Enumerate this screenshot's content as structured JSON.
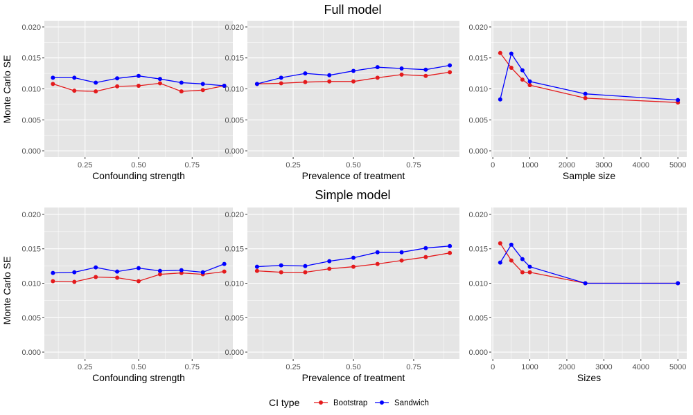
{
  "figure": {
    "row_titles": [
      "Full model",
      "Simple model"
    ],
    "y_axis_label": "Monte Carlo SE",
    "legend": {
      "title": "CI type",
      "entries": [
        {
          "name": "Bootstrap",
          "color": "#e41a1c"
        },
        {
          "name": "Sandwich",
          "color": "#0000ff"
        }
      ],
      "position": "bottom"
    },
    "panel_background": "#e5e5e5",
    "grid_color": "#ffffff"
  },
  "chart_data": [
    {
      "type": "line",
      "row": "Full model",
      "xlabel": "Confounding strength",
      "ylabel": "Monte Carlo SE",
      "xlim": [
        0.06,
        0.94
      ],
      "ylim": [
        -0.001,
        0.021
      ],
      "xticks": [
        0.25,
        0.5,
        0.75
      ],
      "xtick_labels": [
        "0.25",
        "0.50",
        "0.75"
      ],
      "yticks": [
        0,
        0.005,
        0.01,
        0.015,
        0.02
      ],
      "ytick_labels": [
        "0.000",
        "0.005",
        "0.010",
        "0.015",
        "0.020"
      ],
      "grid": true,
      "x": [
        0.1,
        0.2,
        0.3,
        0.4,
        0.5,
        0.6,
        0.7,
        0.8,
        0.9
      ],
      "series": [
        {
          "name": "Bootstrap",
          "values": [
            0.0108,
            0.0097,
            0.0096,
            0.0104,
            0.0105,
            0.0109,
            0.0096,
            0.0098,
            0.0105
          ]
        },
        {
          "name": "Sandwich",
          "values": [
            0.0118,
            0.0118,
            0.011,
            0.0117,
            0.0121,
            0.0116,
            0.011,
            0.0108,
            0.0105
          ]
        }
      ]
    },
    {
      "type": "line",
      "row": "Full model",
      "xlabel": "Prevalence of treatment",
      "ylabel": "",
      "xlim": [
        0.06,
        0.94
      ],
      "ylim": [
        -0.001,
        0.021
      ],
      "xticks": [
        0.25,
        0.5,
        0.75
      ],
      "xtick_labels": [
        "0.25",
        "0.50",
        "0.75"
      ],
      "yticks": [
        0,
        0.005,
        0.01,
        0.015,
        0.02
      ],
      "ytick_labels": [
        "0.000",
        "0.005",
        "0.010",
        "0.015",
        "0.020"
      ],
      "grid": true,
      "x": [
        0.1,
        0.2,
        0.3,
        0.4,
        0.5,
        0.6,
        0.7,
        0.8,
        0.9
      ],
      "series": [
        {
          "name": "Bootstrap",
          "values": [
            0.0108,
            0.0109,
            0.0111,
            0.0112,
            0.0112,
            0.0118,
            0.0123,
            0.0121,
            0.0127
          ]
        },
        {
          "name": "Sandwich",
          "values": [
            0.0108,
            0.0118,
            0.0125,
            0.0122,
            0.0129,
            0.0135,
            0.0133,
            0.0131,
            0.0138
          ]
        }
      ]
    },
    {
      "type": "line",
      "row": "Full model",
      "xlabel": "Sample size",
      "ylabel": "",
      "xlim": [
        -40,
        5240
      ],
      "ylim": [
        -0.001,
        0.021
      ],
      "xticks": [
        0,
        1000,
        2000,
        3000,
        4000,
        5000
      ],
      "xtick_labels": [
        "0",
        "1000",
        "2000",
        "3000",
        "4000",
        "5000"
      ],
      "yticks": [
        0,
        0.005,
        0.01,
        0.015,
        0.02
      ],
      "ytick_labels": [
        "0.000",
        "0.005",
        "0.010",
        "0.015",
        "0.020"
      ],
      "grid": true,
      "x": [
        200,
        500,
        800,
        1000,
        2500,
        5000
      ],
      "series": [
        {
          "name": "Bootstrap",
          "values": [
            0.0158,
            0.0134,
            0.0115,
            0.0106,
            0.0085,
            0.0078
          ]
        },
        {
          "name": "Sandwich",
          "values": [
            0.0083,
            0.0157,
            0.013,
            0.0112,
            0.0092,
            0.0082
          ]
        }
      ]
    },
    {
      "type": "line",
      "row": "Simple model",
      "xlabel": "Confounding strength",
      "ylabel": "Monte Carlo SE",
      "xlim": [
        0.06,
        0.94
      ],
      "ylim": [
        -0.001,
        0.021
      ],
      "xticks": [
        0.25,
        0.5,
        0.75
      ],
      "xtick_labels": [
        "0.25",
        "0.50",
        "0.75"
      ],
      "yticks": [
        0,
        0.005,
        0.01,
        0.015,
        0.02
      ],
      "ytick_labels": [
        "0.000",
        "0.005",
        "0.010",
        "0.015",
        "0.020"
      ],
      "grid": true,
      "x": [
        0.1,
        0.2,
        0.3,
        0.4,
        0.5,
        0.6,
        0.7,
        0.8,
        0.9
      ],
      "series": [
        {
          "name": "Bootstrap",
          "values": [
            0.0103,
            0.0102,
            0.0109,
            0.0108,
            0.0103,
            0.0113,
            0.0115,
            0.0113,
            0.0117
          ]
        },
        {
          "name": "Sandwich",
          "values": [
            0.0115,
            0.0116,
            0.0123,
            0.0117,
            0.0122,
            0.0118,
            0.0119,
            0.0116,
            0.0128
          ]
        }
      ]
    },
    {
      "type": "line",
      "row": "Simple model",
      "xlabel": "Prevalence of treatment",
      "ylabel": "",
      "xlim": [
        0.06,
        0.94
      ],
      "ylim": [
        -0.001,
        0.021
      ],
      "xticks": [
        0.25,
        0.5,
        0.75
      ],
      "xtick_labels": [
        "0.25",
        "0.50",
        "0.75"
      ],
      "yticks": [
        0,
        0.005,
        0.01,
        0.015,
        0.02
      ],
      "ytick_labels": [
        "0.000",
        "0.005",
        "0.010",
        "0.015",
        "0.020"
      ],
      "grid": true,
      "x": [
        0.1,
        0.2,
        0.3,
        0.4,
        0.5,
        0.6,
        0.7,
        0.8,
        0.9
      ],
      "series": [
        {
          "name": "Bootstrap",
          "values": [
            0.0118,
            0.0116,
            0.0116,
            0.0121,
            0.0124,
            0.0128,
            0.0133,
            0.0138,
            0.0144
          ]
        },
        {
          "name": "Sandwich",
          "values": [
            0.0124,
            0.0126,
            0.0125,
            0.0132,
            0.0137,
            0.0145,
            0.0145,
            0.0151,
            0.0154
          ]
        }
      ]
    },
    {
      "type": "line",
      "row": "Simple model",
      "xlabel": "Sizes",
      "ylabel": "",
      "xlim": [
        -40,
        5240
      ],
      "ylim": [
        -0.001,
        0.021
      ],
      "xticks": [
        0,
        1000,
        2000,
        3000,
        4000,
        5000
      ],
      "xtick_labels": [
        "0",
        "1000",
        "2000",
        "3000",
        "4000",
        "5000"
      ],
      "yticks": [
        0,
        0.005,
        0.01,
        0.015,
        0.02
      ],
      "ytick_labels": [
        "0.000",
        "0.005",
        "0.010",
        "0.015",
        "0.020"
      ],
      "grid": true,
      "x": [
        200,
        500,
        800,
        1000,
        2500,
        5000
      ],
      "series": [
        {
          "name": "Bootstrap",
          "values": [
            0.0158,
            0.0133,
            0.0116,
            0.0116,
            0.01,
            0.01
          ]
        },
        {
          "name": "Sandwich",
          "values": [
            0.013,
            0.0156,
            0.0135,
            0.0124,
            0.01,
            0.01
          ]
        }
      ]
    }
  ]
}
